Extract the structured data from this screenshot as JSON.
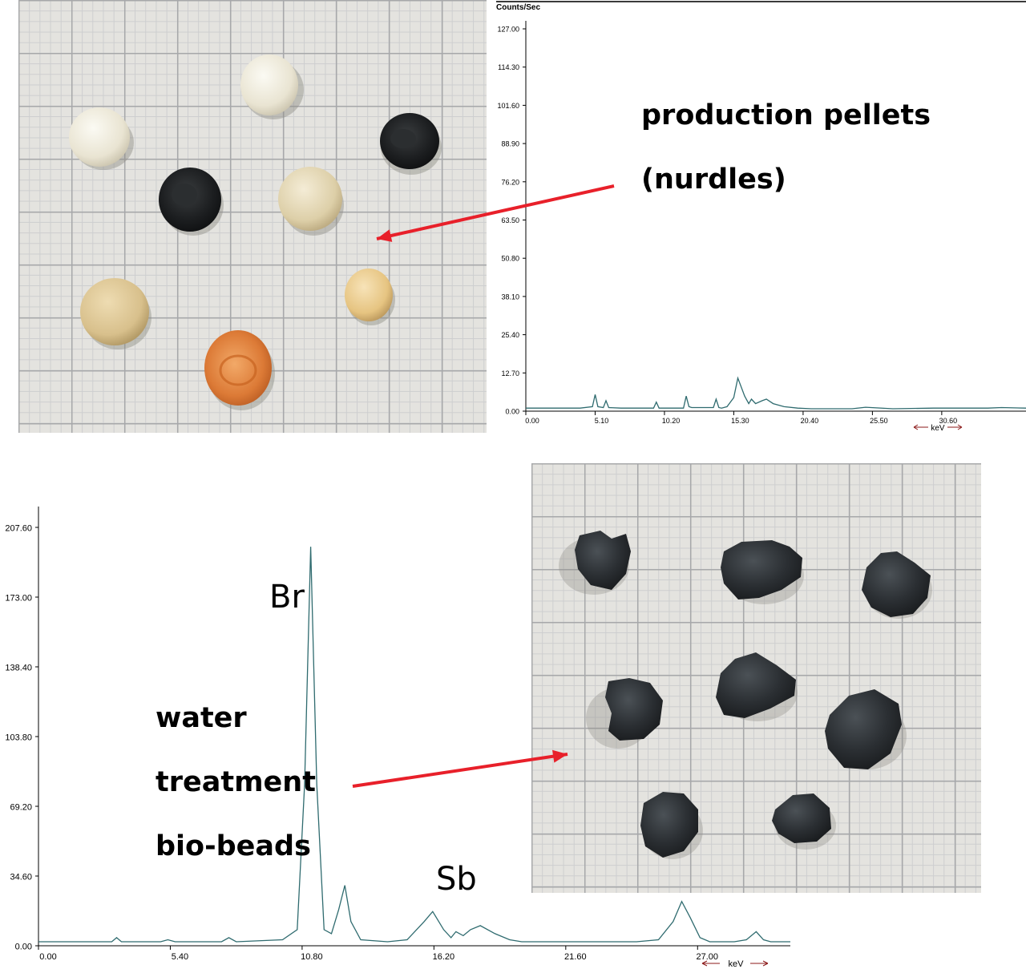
{
  "colors": {
    "spectrum_line": "#2f6b6f",
    "axis": "#000000",
    "arrow": "#e8202a",
    "header_text": "#8b1a1a"
  },
  "labels": {
    "top_label_line1": "production pellets",
    "top_label_line2": "(nurdles)",
    "bottom_label_line1": "water",
    "bottom_label_line2": "treatment",
    "bottom_label_line3": "bio-beads",
    "element_br": "Br",
    "element_sb": "Sb"
  },
  "chart_data": [
    {
      "type": "line",
      "ylabel": "Counts/Sec",
      "xlabel": "keV",
      "xlim": [
        0,
        36.8
      ],
      "ylim": [
        0,
        127
      ],
      "xticks": [
        "0.00",
        "5.10",
        "10.20",
        "15.30",
        "20.40",
        "25.50",
        "30.60"
      ],
      "yticks": [
        "0.00",
        "12.70",
        "25.40",
        "38.10",
        "50.80",
        "63.50",
        "76.20",
        "88.90",
        "101.60",
        "114.30",
        "127.00"
      ],
      "series": [
        {
          "x": [
            0,
            2,
            4,
            4.9,
            5.1,
            5.3,
            5.7,
            5.9,
            6.1,
            7,
            9.4,
            9.6,
            9.8,
            11.6,
            11.8,
            12,
            12.2,
            12.5,
            13.8,
            14,
            14.2,
            14.4,
            14.8,
            15.3,
            15.6,
            16.1,
            16.4,
            16.6,
            16.9,
            17.4,
            17.7,
            18.2,
            19,
            20,
            21,
            24,
            25,
            27,
            30,
            34,
            35,
            36.8
          ],
          "y": [
            1,
            1,
            1,
            1.5,
            5.5,
            1.5,
            1.2,
            3.5,
            1.2,
            1,
            1,
            3,
            1,
            1,
            5,
            1.5,
            1.2,
            1.2,
            1.2,
            4,
            1.2,
            1,
            1.5,
            4.5,
            11,
            5,
            2.5,
            4,
            2.5,
            3.5,
            4,
            2.5,
            1.5,
            1,
            0.8,
            0.8,
            1.3,
            0.8,
            1,
            1,
            1.2,
            1
          ]
        }
      ]
    },
    {
      "type": "line",
      "xlabel": "keV",
      "xlim": [
        0,
        30.8
      ],
      "ylim": [
        0,
        207.6
      ],
      "xticks": [
        "0.00",
        "5.40",
        "10.80",
        "16.20",
        "21.60",
        "27.00"
      ],
      "yticks": [
        "0.00",
        "34.60",
        "69.20",
        "103.80",
        "138.40",
        "173.00",
        "207.60"
      ],
      "series": [
        {
          "x": [
            0,
            3,
            3.2,
            3.4,
            5,
            5.3,
            5.6,
            7.5,
            7.8,
            8.1,
            10,
            10.6,
            10.9,
            11.15,
            11.4,
            11.7,
            12,
            12.3,
            12.55,
            12.8,
            13.2,
            14.3,
            15.1,
            15.8,
            16.15,
            16.6,
            16.9,
            17.1,
            17.4,
            17.7,
            18.1,
            18.7,
            19.3,
            19.8,
            21.5,
            24.5,
            25.4,
            26,
            26.35,
            26.7,
            27.1,
            27.5,
            28.5,
            29,
            29.4,
            29.7,
            30,
            30.8
          ],
          "y": [
            2,
            2,
            4,
            2,
            2,
            3,
            2,
            2,
            4,
            2,
            3,
            8,
            80,
            198,
            80,
            8,
            6,
            18,
            30,
            12,
            3,
            2,
            3,
            12,
            17,
            8,
            4,
            7,
            5,
            8,
            10,
            6,
            3,
            2,
            2,
            2,
            3,
            12,
            22,
            14,
            4,
            2,
            2,
            3,
            7,
            3,
            2,
            2
          ]
        }
      ]
    }
  ]
}
